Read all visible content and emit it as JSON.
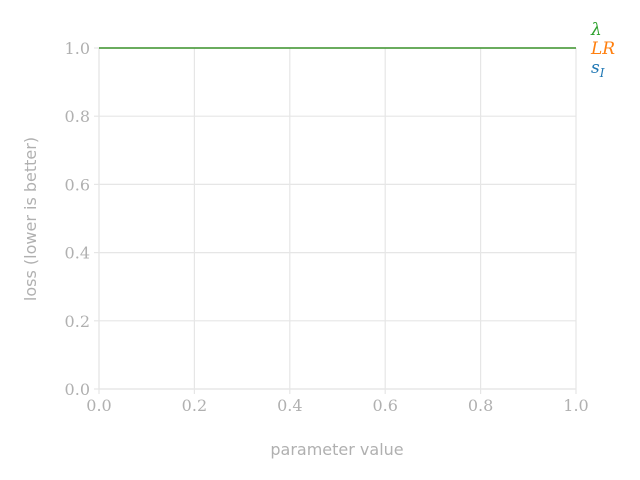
{
  "chart_data": {
    "type": "line",
    "xlabel": "parameter value",
    "ylabel": "loss (lower is better)",
    "xlim": [
      0.0,
      1.0
    ],
    "ylim": [
      0.0,
      1.0
    ],
    "x_ticks": [
      "0.0",
      "0.2",
      "0.4",
      "0.6",
      "0.8",
      "1.0"
    ],
    "y_ticks": [
      "0.0",
      "0.2",
      "0.4",
      "0.6",
      "0.8",
      "1.0"
    ],
    "grid": true,
    "legend": "right",
    "series": [
      {
        "name": "λ",
        "color": "#2ca02c",
        "x": [
          0.0,
          1.0
        ],
        "y": [
          1.0,
          1.0
        ]
      },
      {
        "name": "LR",
        "color": "#ff7f0e",
        "x": [
          0.0,
          1.0
        ],
        "y": [
          1.0,
          1.0
        ]
      },
      {
        "name": "s_I",
        "color": "#1f77b4",
        "x": [
          0.0,
          1.0
        ],
        "y": [
          1.0,
          1.0
        ]
      }
    ]
  }
}
